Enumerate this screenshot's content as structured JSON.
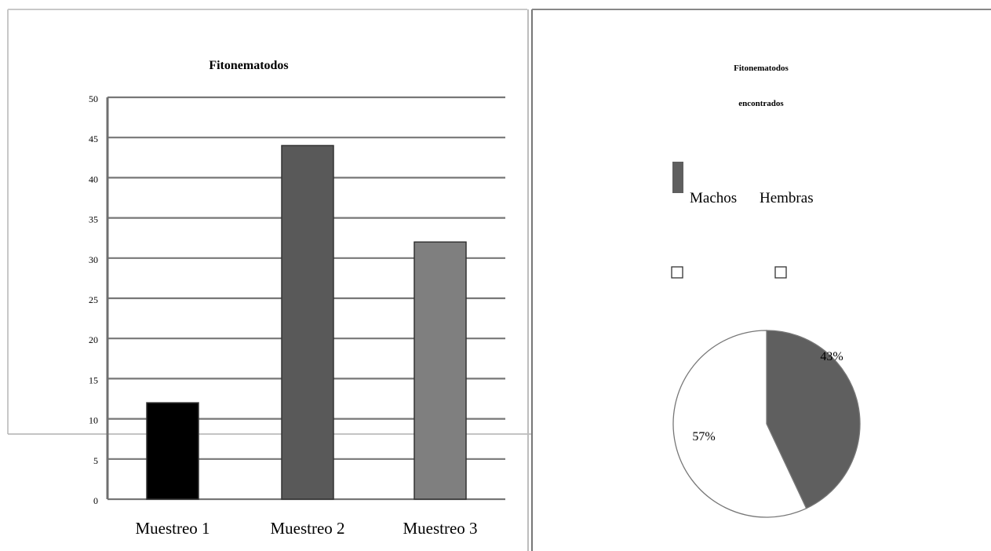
{
  "chart_data": [
    {
      "type": "bar",
      "title": "Fitonematodos",
      "categories": [
        "Muestreo 1",
        "Muestreo 2",
        "Muestreo  3"
      ],
      "values": [
        12,
        44,
        32
      ],
      "ylim": [
        0,
        50
      ],
      "yticks": [
        "0",
        "5",
        "10",
        "15",
        "20",
        "25",
        "30",
        "35",
        "40",
        "45",
        "50"
      ],
      "xlabel": "",
      "ylabel": "",
      "grid": true,
      "legend": "none",
      "bar_colors": [
        "#000000",
        "#595959",
        "#7f7f7f"
      ]
    },
    {
      "type": "pie",
      "title_line1": "Fitonematodos",
      "title_line2": "encontrados",
      "slices": [
        {
          "label": "Machos",
          "value": 43,
          "value_label": "43%",
          "color": "#5f5f5f"
        },
        {
          "label": "Hembras",
          "value": 57,
          "value_label": "57%",
          "color": "#ffffff"
        }
      ],
      "legend": "top"
    }
  ]
}
